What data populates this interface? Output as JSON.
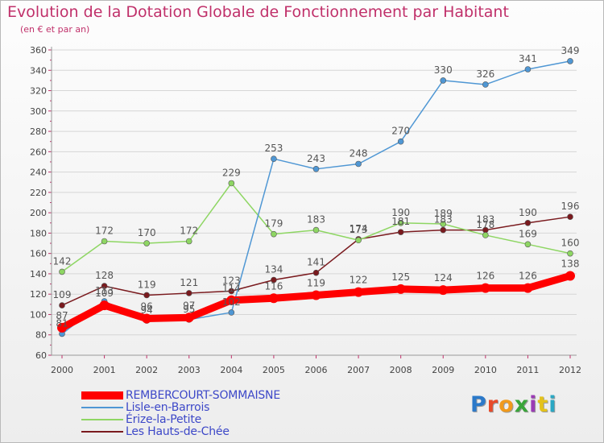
{
  "header": {
    "title": "Evolution de la Dotation Globale de Fonctionnement par Habitant",
    "subtitle": "(en € et par an)"
  },
  "logo": {
    "text": "Proxiti",
    "colors": [
      "#2b79c9",
      "#e84b2a",
      "#f19a1c",
      "#3aa53a",
      "#9b3bb5",
      "#e4c21b",
      "#2ba8c4"
    ]
  },
  "chart_data": {
    "type": "line",
    "title": "Evolution de la Dotation Globale de Fonctionnement par Habitant",
    "subtitle": "(en € et par an)",
    "x": [
      "2000",
      "2001",
      "2002",
      "2003",
      "2004",
      "2005",
      "2006",
      "2007",
      "2008",
      "2009",
      "2010",
      "2011",
      "2012"
    ],
    "ylim": [
      60,
      360
    ],
    "yticks": [
      60,
      80,
      100,
      120,
      140,
      160,
      180,
      200,
      220,
      240,
      260,
      280,
      300,
      320,
      340,
      360
    ],
    "grid": "horizontal",
    "legend_position": "bottom-left",
    "series": [
      {
        "name": "Les Hauts-de-Chée",
        "color": "#7a1a1e",
        "values": [
          109,
          128,
          119,
          121,
          123,
          134,
          141,
          174,
          181,
          183,
          183,
          190,
          196
        ]
      },
      {
        "name": "Érize-la-Petite",
        "color": "#8ed663",
        "values": [
          142,
          172,
          170,
          172,
          229,
          179,
          183,
          173,
          190,
          189,
          178,
          169,
          160
        ]
      },
      {
        "name": "Lisle-en-Barrois",
        "color": "#4f97d4",
        "values": [
          81,
          113,
          94,
          95,
          102,
          253,
          243,
          248,
          270,
          330,
          326,
          341,
          349
        ]
      },
      {
        "name": "REMBERCOURT-SOMMAISNE",
        "color": "#ff0000",
        "values": [
          87,
          109,
          96,
          97,
          114,
          116,
          119,
          122,
          125,
          124,
          126,
          126,
          138
        ]
      }
    ]
  }
}
